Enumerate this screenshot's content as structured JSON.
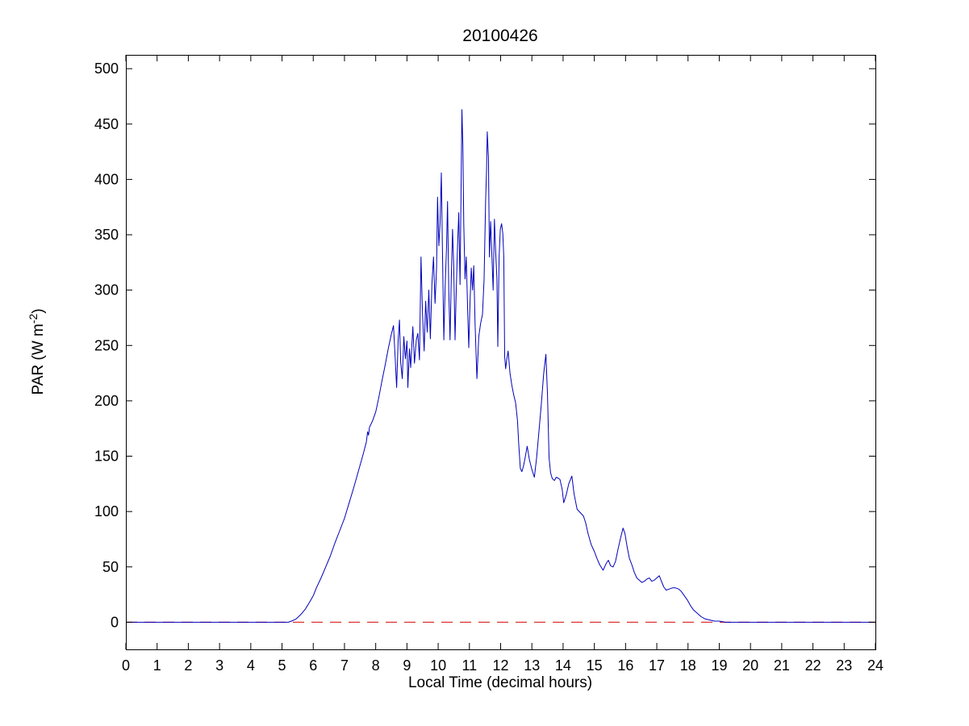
{
  "figure": {
    "background": "#ffffff",
    "axis_color": "#000000",
    "tick_label_color": "#000000"
  },
  "chart_data": {
    "type": "line",
    "title": "20100426",
    "xlabel": "Local Time (decimal hours)",
    "ylabel": "PAR (W m-2)",
    "ylabel_parts": [
      "PAR (W m",
      "-2",
      ")"
    ],
    "xlim": [
      0,
      24
    ],
    "ylim": [
      -24.5,
      512.5
    ],
    "x_ticks": [
      0,
      1,
      2,
      3,
      4,
      5,
      6,
      7,
      8,
      9,
      10,
      11,
      12,
      13,
      14,
      15,
      16,
      17,
      18,
      19,
      20,
      21,
      22,
      23,
      24
    ],
    "y_ticks": [
      0,
      50,
      100,
      150,
      200,
      250,
      300,
      350,
      400,
      450,
      500
    ],
    "grid": false,
    "legend": "none",
    "reference_lines": [
      {
        "y": 0,
        "color": "#dd3333",
        "style": "dashed"
      }
    ],
    "series": [
      {
        "name": "PAR",
        "color": "#0000bb",
        "points": [
          [
            0,
            0
          ],
          [
            0.5,
            0
          ],
          [
            1,
            0
          ],
          [
            1.5,
            0
          ],
          [
            2,
            0
          ],
          [
            2.5,
            0
          ],
          [
            3,
            0
          ],
          [
            3.5,
            0
          ],
          [
            4,
            0
          ],
          [
            4.5,
            0
          ],
          [
            5,
            0
          ],
          [
            5.2,
            0
          ],
          [
            5.3,
            1
          ],
          [
            5.45,
            3
          ],
          [
            5.6,
            7
          ],
          [
            5.75,
            12
          ],
          [
            5.9,
            19
          ],
          [
            6,
            24
          ],
          [
            6.1,
            31
          ],
          [
            6.25,
            40
          ],
          [
            6.4,
            50
          ],
          [
            6.55,
            60
          ],
          [
            6.7,
            72
          ],
          [
            6.85,
            83
          ],
          [
            7,
            94
          ],
          [
            7.15,
            108
          ],
          [
            7.3,
            122
          ],
          [
            7.45,
            137
          ],
          [
            7.6,
            152
          ],
          [
            7.7,
            163
          ],
          [
            7.74,
            172
          ],
          [
            7.77,
            169
          ],
          [
            7.8,
            176
          ],
          [
            7.9,
            182
          ],
          [
            8,
            190
          ],
          [
            8.1,
            203
          ],
          [
            8.2,
            218
          ],
          [
            8.3,
            232
          ],
          [
            8.4,
            247
          ],
          [
            8.5,
            260
          ],
          [
            8.57,
            268
          ],
          [
            8.62,
            240
          ],
          [
            8.67,
            212
          ],
          [
            8.72,
            255
          ],
          [
            8.76,
            273
          ],
          [
            8.8,
            235
          ],
          [
            8.85,
            220
          ],
          [
            8.9,
            258
          ],
          [
            8.95,
            238
          ],
          [
            9,
            254
          ],
          [
            9.03,
            212
          ],
          [
            9.08,
            247
          ],
          [
            9.12,
            230
          ],
          [
            9.19,
            267
          ],
          [
            9.24,
            234
          ],
          [
            9.3,
            255
          ],
          [
            9.35,
            261
          ],
          [
            9.4,
            237
          ],
          [
            9.45,
            330
          ],
          [
            9.5,
            278
          ],
          [
            9.55,
            245
          ],
          [
            9.6,
            290
          ],
          [
            9.65,
            262
          ],
          [
            9.7,
            300
          ],
          [
            9.75,
            256
          ],
          [
            9.8,
            305
          ],
          [
            9.85,
            330
          ],
          [
            9.9,
            288
          ],
          [
            9.95,
            320
          ],
          [
            9.98,
            384
          ],
          [
            10.02,
            340
          ],
          [
            10.06,
            360
          ],
          [
            10.1,
            406
          ],
          [
            10.14,
            330
          ],
          [
            10.18,
            255
          ],
          [
            10.22,
            300
          ],
          [
            10.27,
            340
          ],
          [
            10.3,
            380
          ],
          [
            10.34,
            300
          ],
          [
            10.38,
            255
          ],
          [
            10.42,
            310
          ],
          [
            10.46,
            355
          ],
          [
            10.5,
            320
          ],
          [
            10.54,
            255
          ],
          [
            10.58,
            300
          ],
          [
            10.62,
            340
          ],
          [
            10.66,
            370
          ],
          [
            10.7,
            305
          ],
          [
            10.73,
            380
          ],
          [
            10.76,
            463
          ],
          [
            10.79,
            430
          ],
          [
            10.82,
            360
          ],
          [
            10.86,
            310
          ],
          [
            10.9,
            330
          ],
          [
            10.94,
            285
          ],
          [
            10.98,
            248
          ],
          [
            11.02,
            290
          ],
          [
            11.06,
            320
          ],
          [
            11.1,
            300
          ],
          [
            11.14,
            322
          ],
          [
            11.18,
            270
          ],
          [
            11.24,
            220
          ],
          [
            11.3,
            258
          ],
          [
            11.36,
            270
          ],
          [
            11.42,
            278
          ],
          [
            11.47,
            310
          ],
          [
            11.52,
            381
          ],
          [
            11.55,
            410
          ],
          [
            11.57,
            443
          ],
          [
            11.61,
            420
          ],
          [
            11.64,
            330
          ],
          [
            11.68,
            362
          ],
          [
            11.72,
            330
          ],
          [
            11.76,
            300
          ],
          [
            11.8,
            364
          ],
          [
            11.84,
            335
          ],
          [
            11.88,
            310
          ],
          [
            11.91,
            249
          ],
          [
            11.95,
            330
          ],
          [
            11.99,
            355
          ],
          [
            12.03,
            360
          ],
          [
            12.07,
            351
          ],
          [
            12.1,
            330
          ],
          [
            12.13,
            240
          ],
          [
            12.16,
            229
          ],
          [
            12.2,
            238
          ],
          [
            12.24,
            245
          ],
          [
            12.3,
            225
          ],
          [
            12.36,
            214
          ],
          [
            12.42,
            205
          ],
          [
            12.48,
            198
          ],
          [
            12.54,
            182
          ],
          [
            12.58,
            160
          ],
          [
            12.63,
            139
          ],
          [
            12.68,
            136
          ],
          [
            12.73,
            141
          ],
          [
            12.78,
            148
          ],
          [
            12.85,
            159
          ],
          [
            12.92,
            147
          ],
          [
            13,
            138
          ],
          [
            13.08,
            131
          ],
          [
            13.15,
            148
          ],
          [
            13.22,
            170
          ],
          [
            13.3,
            196
          ],
          [
            13.38,
            225
          ],
          [
            13.45,
            242
          ],
          [
            13.5,
            205
          ],
          [
            13.55,
            149
          ],
          [
            13.6,
            135
          ],
          [
            13.65,
            130
          ],
          [
            13.72,
            128
          ],
          [
            13.78,
            131
          ],
          [
            13.85,
            130
          ],
          [
            13.9,
            129
          ],
          [
            13.97,
            120
          ],
          [
            14.02,
            108
          ],
          [
            14.1,
            115
          ],
          [
            14.18,
            125
          ],
          [
            14.28,
            132
          ],
          [
            14.35,
            116
          ],
          [
            14.45,
            102
          ],
          [
            14.55,
            99
          ],
          [
            14.65,
            96
          ],
          [
            14.72,
            90
          ],
          [
            14.8,
            80
          ],
          [
            14.9,
            70
          ],
          [
            15,
            64
          ],
          [
            15.08,
            58
          ],
          [
            15.17,
            52
          ],
          [
            15.28,
            47
          ],
          [
            15.38,
            53
          ],
          [
            15.45,
            56
          ],
          [
            15.52,
            51
          ],
          [
            15.6,
            50
          ],
          [
            15.68,
            55
          ],
          [
            15.76,
            66
          ],
          [
            15.84,
            76
          ],
          [
            15.92,
            85
          ],
          [
            15.98,
            80
          ],
          [
            16.05,
            68
          ],
          [
            16.12,
            58
          ],
          [
            16.2,
            52
          ],
          [
            16.28,
            45
          ],
          [
            16.36,
            40
          ],
          [
            16.44,
            38
          ],
          [
            16.52,
            36
          ],
          [
            16.6,
            37
          ],
          [
            16.68,
            39
          ],
          [
            16.76,
            40
          ],
          [
            16.84,
            37
          ],
          [
            16.92,
            38
          ],
          [
            17,
            40
          ],
          [
            17.08,
            42
          ],
          [
            17.15,
            37
          ],
          [
            17.22,
            32
          ],
          [
            17.3,
            29
          ],
          [
            17.4,
            30
          ],
          [
            17.5,
            31
          ],
          [
            17.6,
            31
          ],
          [
            17.7,
            30
          ],
          [
            17.78,
            28
          ],
          [
            17.88,
            24
          ],
          [
            17.98,
            20
          ],
          [
            18.08,
            15
          ],
          [
            18.18,
            11
          ],
          [
            18.3,
            8
          ],
          [
            18.42,
            5
          ],
          [
            18.55,
            3
          ],
          [
            18.7,
            2
          ],
          [
            18.85,
            1
          ],
          [
            19,
            1
          ],
          [
            19.2,
            0
          ],
          [
            19.5,
            0
          ],
          [
            20,
            0
          ],
          [
            20.5,
            0
          ],
          [
            21,
            0
          ],
          [
            21.5,
            0
          ],
          [
            22,
            0
          ],
          [
            22.5,
            0
          ],
          [
            23,
            0
          ],
          [
            23.5,
            0
          ],
          [
            24,
            0
          ]
        ]
      }
    ]
  }
}
